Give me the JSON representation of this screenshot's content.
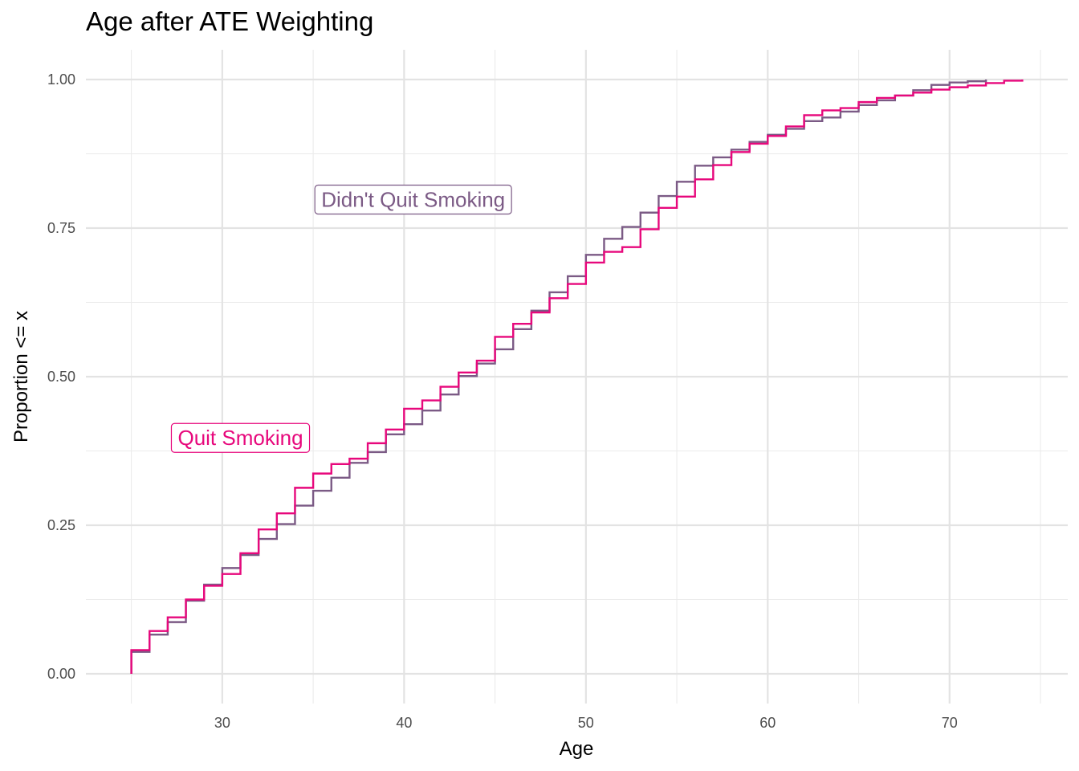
{
  "chart_data": {
    "type": "line",
    "title": "Age after ATE Weighting",
    "xlabel": "Age",
    "ylabel": "Proportion <= x",
    "xlim": [
      22.5,
      76.5
    ],
    "ylim": [
      -0.05,
      1.05
    ],
    "x_ticks": [
      30,
      40,
      50,
      60,
      70
    ],
    "x_tick_labels": [
      "30",
      "40",
      "50",
      "60",
      "70"
    ],
    "y_ticks": [
      0,
      0.25,
      0.5,
      0.75,
      1.0
    ],
    "y_tick_labels": [
      "0.00",
      "0.25",
      "0.50",
      "0.75",
      "1.00"
    ],
    "grid": true,
    "step": true,
    "series": [
      {
        "name": "Didn't Quit Smoking",
        "color": "#7b5a85",
        "x": [
          25,
          26,
          27,
          28,
          29,
          30,
          31,
          32,
          33,
          34,
          35,
          36,
          37,
          38,
          39,
          40,
          41,
          42,
          43,
          44,
          45,
          46,
          47,
          48,
          49,
          50,
          51,
          52,
          53,
          54,
          55,
          56,
          57,
          58,
          59,
          60,
          61,
          62,
          63,
          64,
          65,
          66,
          67,
          68,
          69,
          70,
          71,
          72
        ],
        "y": [
          0.037,
          0.066,
          0.087,
          0.123,
          0.15,
          0.178,
          0.2,
          0.227,
          0.252,
          0.283,
          0.308,
          0.33,
          0.355,
          0.373,
          0.403,
          0.42,
          0.443,
          0.47,
          0.501,
          0.522,
          0.546,
          0.58,
          0.611,
          0.642,
          0.669,
          0.705,
          0.732,
          0.752,
          0.776,
          0.804,
          0.828,
          0.855,
          0.869,
          0.882,
          0.895,
          0.907,
          0.917,
          0.93,
          0.936,
          0.946,
          0.957,
          0.965,
          0.973,
          0.982,
          0.991,
          0.995,
          0.997,
          1.0
        ]
      },
      {
        "name": "Quit Smoking",
        "color": "#e7087c",
        "x": [
          25,
          26,
          27,
          28,
          29,
          30,
          31,
          32,
          33,
          34,
          35,
          36,
          37,
          38,
          39,
          40,
          41,
          42,
          43,
          44,
          45,
          46,
          47,
          48,
          49,
          50,
          51,
          52,
          53,
          54,
          55,
          56,
          57,
          58,
          59,
          60,
          61,
          62,
          63,
          64,
          65,
          66,
          67,
          68,
          69,
          70,
          71,
          72,
          73,
          74
        ],
        "y": [
          0.04,
          0.072,
          0.095,
          0.125,
          0.148,
          0.168,
          0.203,
          0.243,
          0.27,
          0.313,
          0.337,
          0.353,
          0.362,
          0.388,
          0.411,
          0.446,
          0.46,
          0.483,
          0.507,
          0.527,
          0.567,
          0.589,
          0.608,
          0.632,
          0.656,
          0.692,
          0.71,
          0.718,
          0.748,
          0.784,
          0.803,
          0.832,
          0.856,
          0.878,
          0.892,
          0.905,
          0.921,
          0.94,
          0.948,
          0.952,
          0.962,
          0.969,
          0.973,
          0.978,
          0.983,
          0.987,
          0.99,
          0.994,
          0.998,
          1.0
        ]
      }
    ],
    "annotations": [
      {
        "text": "Didn't Quit Smoking",
        "x": 40.5,
        "y": 0.798,
        "color": "#7b5a85"
      },
      {
        "text": "Quit Smoking",
        "x": 31.0,
        "y": 0.397,
        "color": "#e7087c"
      }
    ]
  }
}
